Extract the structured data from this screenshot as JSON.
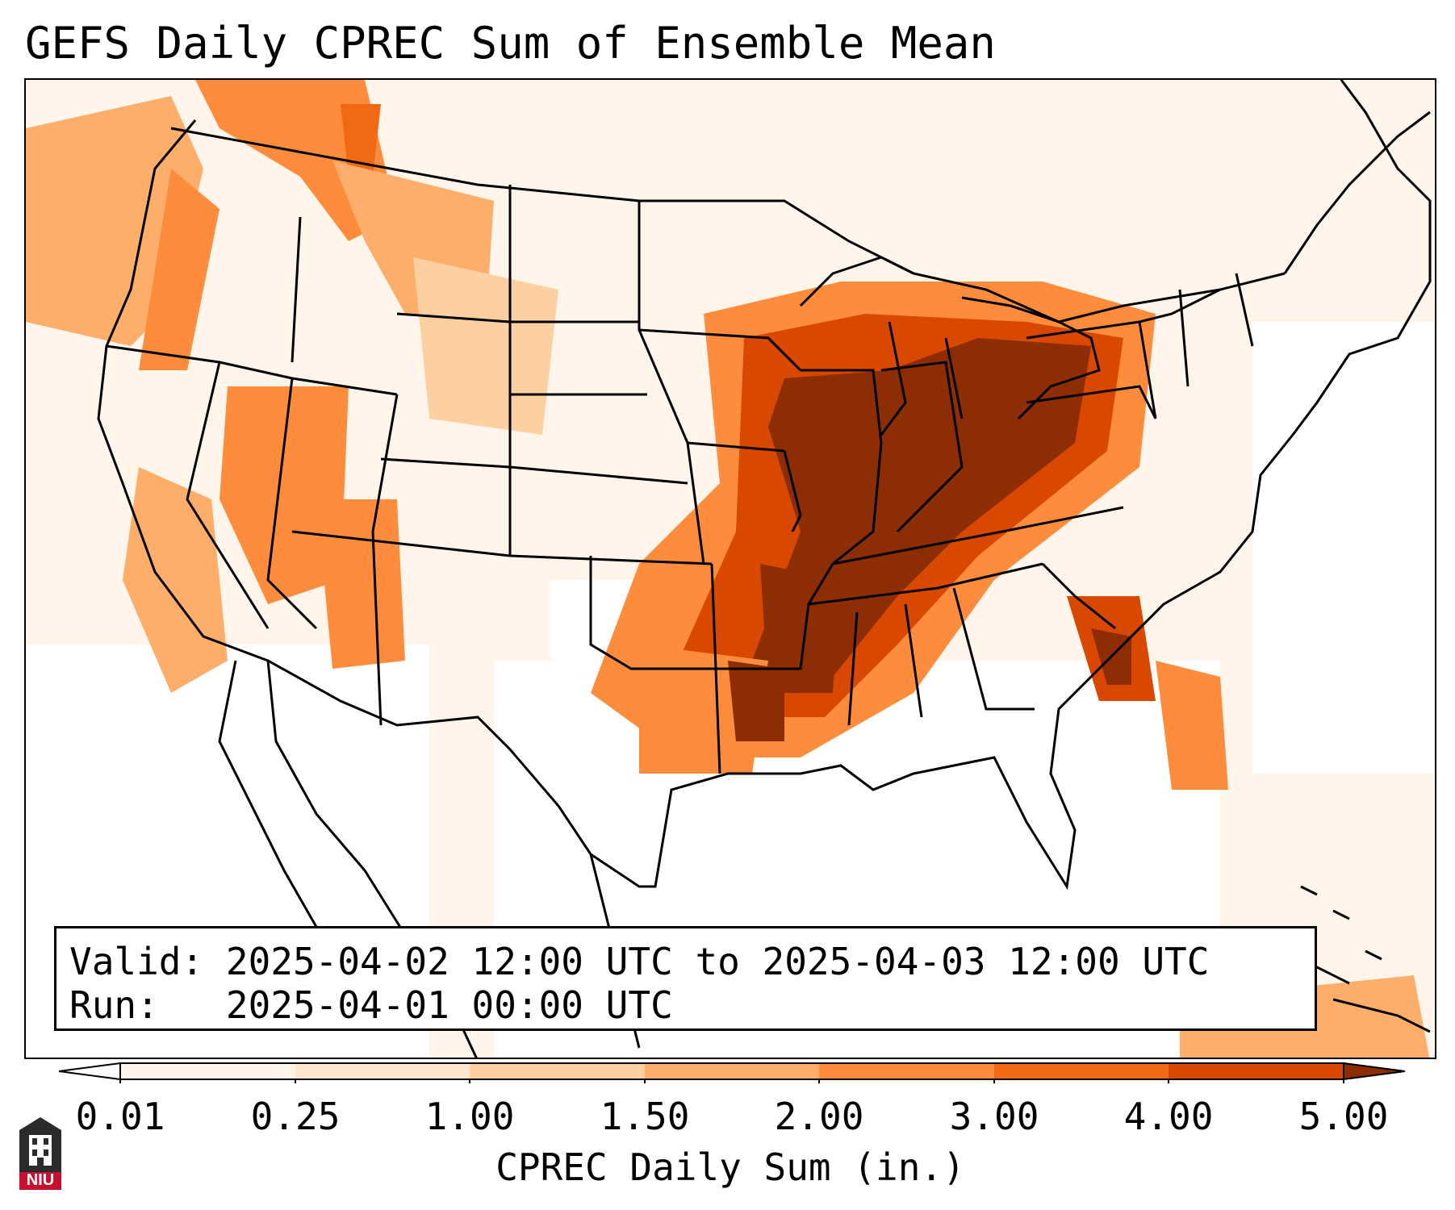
{
  "title": "GEFS Daily CPREC Sum of Ensemble Mean",
  "info": {
    "valid_label": "Valid:",
    "valid_value": "2025-04-02 12:00 UTC to 2025-04-03 12:00 UTC",
    "run_label": "Run:",
    "run_value": "2025-04-01 00:00 UTC"
  },
  "colorbar": {
    "label": "CPREC Daily Sum (in.)",
    "ticks": [
      "0.01",
      "0.25",
      "1.00",
      "1.50",
      "2.00",
      "3.00",
      "4.00",
      "5.00"
    ],
    "colors": [
      "#fff5eb",
      "#fee6ce",
      "#fdd0a2",
      "#fdae6b",
      "#fd8d3c",
      "#f16913",
      "#d94801",
      "#8c2d04"
    ],
    "under_color": "#ffffff",
    "over_color": "#7f2704"
  },
  "logo": {
    "text": "NIU"
  },
  "legend_colors": {
    "light": "#fff5eb",
    "pale": "#fee6ce",
    "tan": "#fdd0a2",
    "mid": "#fdae6b",
    "orange": "#fd8d3c",
    "deep": "#f16913",
    "darkorange": "#d94801",
    "brown": "#8c2d04"
  }
}
